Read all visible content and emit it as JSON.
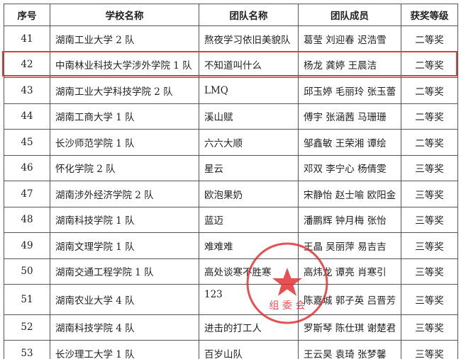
{
  "table": {
    "header": [
      "序号",
      "学校名称",
      "团队名称",
      "团队成员",
      "获奖等级"
    ],
    "rows": [
      [
        41,
        "湖南工业大学 2 队",
        "熬夜学习依旧美貌队",
        "葛莹 刘迎春 迟浩雪",
        "二等奖"
      ],
      [
        42,
        "中南林业科技大学涉外学院 1 队",
        "不知道叫什么",
        "杨龙 龚婷 王晨洁",
        "二等奖"
      ],
      [
        43,
        "湖南工业大学科技学院 2 队",
        "LMQ",
        "邱玉婷 毛丽玲 张玉蕾",
        "二等奖"
      ],
      [
        44,
        "湖南工商大学 1 队",
        "溪山赋",
        "傅宇 张涵茜 马珊珊",
        "二等奖"
      ],
      [
        45,
        "长沙师范学院 1 队",
        "六六大顺",
        "邹鑫敏 王荣湘 谭绘",
        "二等奖"
      ],
      [
        46,
        "怀化学院 2 队",
        "星云",
        "邓双 李宁心 杨倩雯",
        "三等奖"
      ],
      [
        47,
        "湖南涉外经济学院 2 队",
        "欧泡果奶",
        "宋静怡 赵士喻 欧阳金",
        "三等奖"
      ],
      [
        48,
        "湖南科技学院 1 队",
        "蓝迈",
        "潘鹏辉 钟月梅 张怡",
        "三等奖"
      ],
      [
        49,
        "湖南文理学院 1 队",
        "难难难",
        "王晶 吴丽萍 易吉吉",
        "三等奖"
      ],
      [
        50,
        "湖南交通工程学院 1 队",
        "高处谈寒不胜寒",
        "高炜龙 谭亮 肖寒引",
        "三等奖"
      ],
      [
        51,
        "湖南农业大学 4 队",
        "123",
        "陈嘉城 郭子英 吕晋芳",
        "三等奖"
      ],
      [
        52,
        "湖南科技学院 4 队",
        "进击的打工人",
        "罗斯琴 陈仕琪 谢楚君",
        "三等奖"
      ],
      [
        53,
        "长沙理工大学 1 队",
        "百岁山队",
        "王云昊 袁琦 张梦馨",
        "三等奖"
      ]
    ]
  },
  "stamp": {
    "text": "组 委 会"
  }
}
